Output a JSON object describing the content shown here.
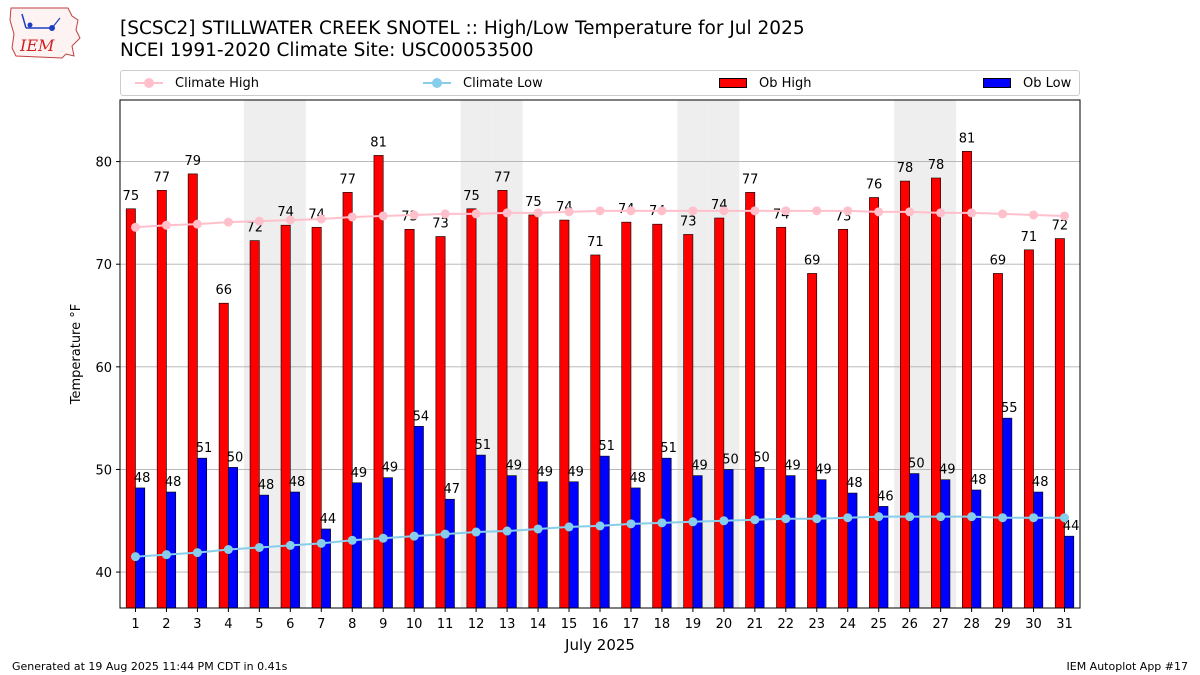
{
  "title_line1": "[SCSC2] STILLWATER CREEK SNOTEL :: High/Low Temperature for Jul 2025",
  "title_line2": "NCEI 1991-2020 Climate Site: USC00053500",
  "logo_text": "IEM",
  "footer_left": "Generated at 19 Aug 2025 11:44 PM CDT in 0.41s",
  "footer_right": "IEM Autoplot App #17",
  "colors": {
    "ob_high": "#ff0000",
    "ob_low": "#0000ff",
    "climate_high": "#ffc0cb",
    "climate_low": "#87ceeb",
    "weekend_shade": "#eeeeee",
    "grid": "#b0b0b0"
  },
  "legend": [
    {
      "label": "Climate High",
      "kind": "line",
      "color": "#ffc0cb"
    },
    {
      "label": "Climate Low",
      "kind": "line",
      "color": "#87ceeb"
    },
    {
      "label": "Ob High",
      "kind": "box",
      "color": "#ff0000"
    },
    {
      "label": "Ob Low",
      "kind": "box",
      "color": "#0000ff"
    }
  ],
  "chart_data": {
    "type": "bar",
    "xlabel": "July 2025",
    "ylabel": "Temperature °F",
    "ylim": [
      36.5,
      86
    ],
    "yticks": [
      40,
      50,
      60,
      70,
      80
    ],
    "grid": true,
    "legend_position": "top",
    "shaded_days": [
      5,
      6,
      12,
      13,
      19,
      20,
      26,
      27
    ],
    "categories": [
      "1",
      "2",
      "3",
      "4",
      "5",
      "6",
      "7",
      "8",
      "9",
      "10",
      "11",
      "12",
      "13",
      "14",
      "15",
      "16",
      "17",
      "18",
      "19",
      "20",
      "21",
      "22",
      "23",
      "24",
      "25",
      "26",
      "27",
      "28",
      "29",
      "30",
      "31"
    ],
    "series": [
      {
        "name": "Ob High",
        "type": "bar",
        "values": [
          75.4,
          77.2,
          78.8,
          66.2,
          72.3,
          73.8,
          73.6,
          77.0,
          80.6,
          73.4,
          72.7,
          75.4,
          77.2,
          74.8,
          74.3,
          70.9,
          74.1,
          73.9,
          72.9,
          74.5,
          77.0,
          73.6,
          69.1,
          73.4,
          76.5,
          78.1,
          78.4,
          81.0,
          69.1,
          71.4,
          72.5
        ],
        "labels": [
          "75",
          "77",
          "79",
          "66",
          "72",
          "74",
          "74",
          "77",
          "81",
          "73",
          "73",
          "75",
          "77",
          "75",
          "74",
          "71",
          "74",
          "74",
          "73",
          "74",
          "77",
          "74",
          "69",
          "73",
          "76",
          "78",
          "78",
          "81",
          "69",
          "71",
          "72"
        ]
      },
      {
        "name": "Ob Low",
        "type": "bar",
        "values": [
          48.2,
          47.8,
          51.1,
          50.2,
          47.5,
          47.8,
          44.2,
          48.7,
          49.2,
          54.2,
          47.1,
          51.4,
          49.4,
          48.8,
          48.8,
          51.3,
          48.2,
          51.1,
          49.4,
          50.0,
          50.2,
          49.4,
          49.0,
          47.7,
          46.4,
          49.6,
          49.0,
          48.0,
          55.0,
          47.8,
          43.5
        ],
        "labels": [
          "48",
          "48",
          "51",
          "50",
          "48",
          "48",
          "44",
          "49",
          "49",
          "54",
          "47",
          "51",
          "49",
          "49",
          "49",
          "51",
          "48",
          "51",
          "49",
          "50",
          "50",
          "49",
          "49",
          "48",
          "46",
          "50",
          "49",
          "48",
          "55",
          "48",
          "44"
        ]
      },
      {
        "name": "Climate High",
        "type": "line",
        "values": [
          73.6,
          73.8,
          73.9,
          74.1,
          74.2,
          74.3,
          74.4,
          74.6,
          74.7,
          74.8,
          74.9,
          74.9,
          75.0,
          75.0,
          75.1,
          75.2,
          75.2,
          75.2,
          75.2,
          75.2,
          75.2,
          75.2,
          75.2,
          75.2,
          75.1,
          75.1,
          75.0,
          75.0,
          74.9,
          74.8,
          74.7
        ]
      },
      {
        "name": "Climate Low",
        "type": "line",
        "values": [
          41.5,
          41.7,
          41.9,
          42.2,
          42.4,
          42.6,
          42.8,
          43.1,
          43.3,
          43.5,
          43.7,
          43.9,
          44.0,
          44.2,
          44.4,
          44.5,
          44.7,
          44.8,
          44.9,
          45.0,
          45.1,
          45.2,
          45.2,
          45.3,
          45.4,
          45.4,
          45.4,
          45.4,
          45.3,
          45.3,
          45.3
        ]
      }
    ]
  }
}
